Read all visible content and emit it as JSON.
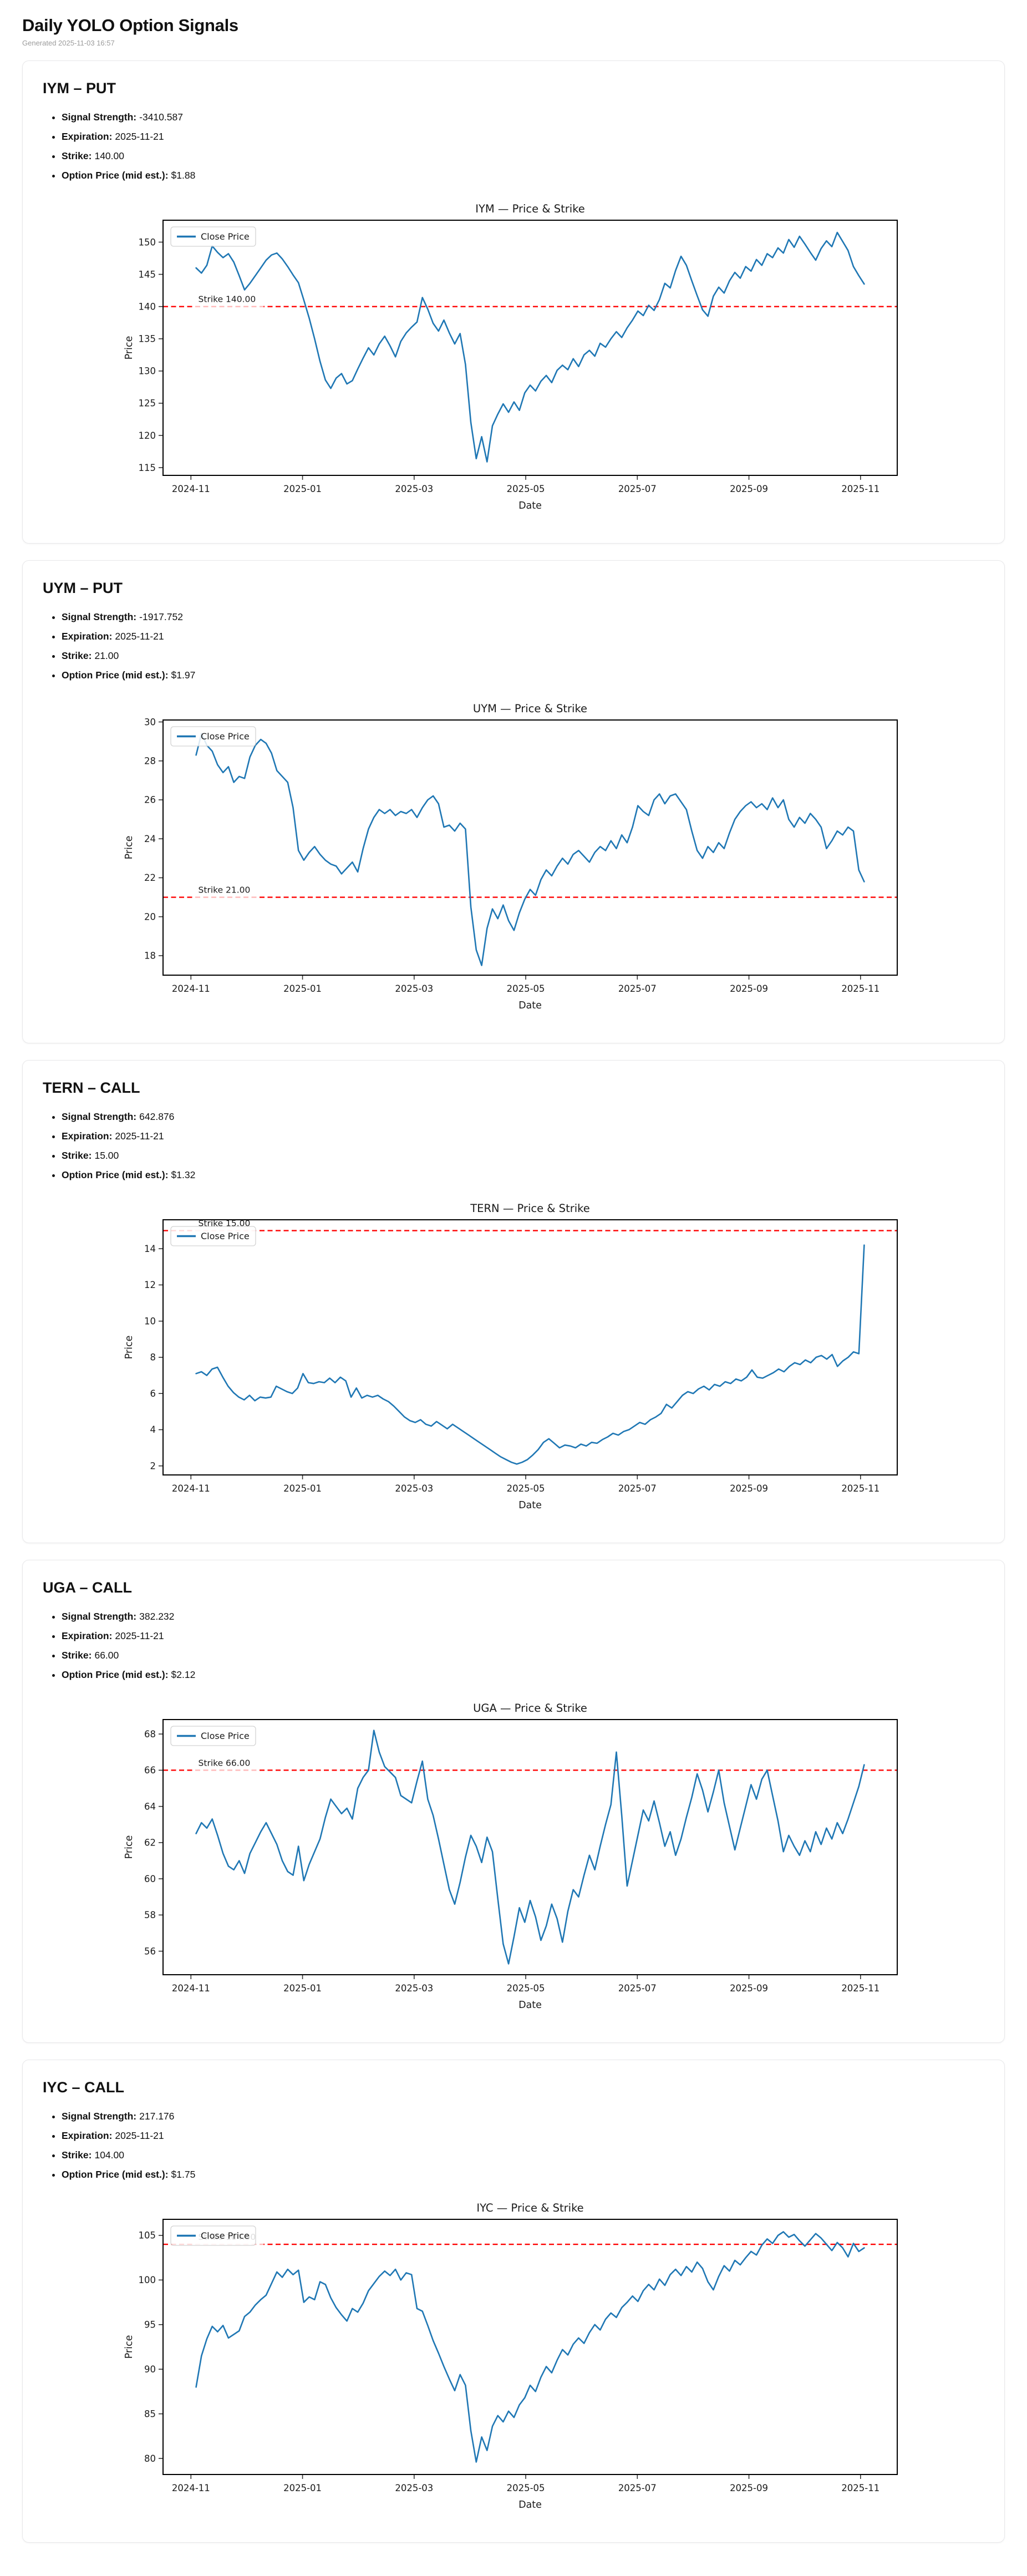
{
  "header": {
    "title": "Daily YOLO Option Signals",
    "generated": "Generated 2025-11-03 16:57"
  },
  "sections": [
    {
      "heading": "IYM – PUT",
      "bullets": [
        {
          "label": "Signal Strength:",
          "value": "-3410.587"
        },
        {
          "label": "Expiration:",
          "value": "2025-11-21"
        },
        {
          "label": "Strike:",
          "value": "140.00"
        },
        {
          "label": "Option Price (mid est.):",
          "value": "$1.88"
        }
      ]
    },
    {
      "heading": "UYM – PUT",
      "bullets": [
        {
          "label": "Signal Strength:",
          "value": "-1917.752"
        },
        {
          "label": "Expiration:",
          "value": "2025-11-21"
        },
        {
          "label": "Strike:",
          "value": "21.00"
        },
        {
          "label": "Option Price (mid est.):",
          "value": "$1.97"
        }
      ]
    },
    {
      "heading": "TERN – CALL",
      "bullets": [
        {
          "label": "Signal Strength:",
          "value": "642.876"
        },
        {
          "label": "Expiration:",
          "value": "2025-11-21"
        },
        {
          "label": "Strike:",
          "value": "15.00"
        },
        {
          "label": "Option Price (mid est.):",
          "value": "$1.32"
        }
      ]
    },
    {
      "heading": "UGA – CALL",
      "bullets": [
        {
          "label": "Signal Strength:",
          "value": "382.232"
        },
        {
          "label": "Expiration:",
          "value": "2025-11-21"
        },
        {
          "label": "Strike:",
          "value": "66.00"
        },
        {
          "label": "Option Price (mid est.):",
          "value": "$2.12"
        }
      ]
    },
    {
      "heading": "IYC – CALL",
      "bullets": [
        {
          "label": "Signal Strength:",
          "value": "217.176"
        },
        {
          "label": "Expiration:",
          "value": "2025-11-21"
        },
        {
          "label": "Strike:",
          "value": "104.00"
        },
        {
          "label": "Option Price (mid est.):",
          "value": "$1.75"
        }
      ]
    }
  ],
  "chart_data": [
    {
      "type": "line",
      "title": "IYM — Price & Strike",
      "xlabel": "Date",
      "ylabel": "Price",
      "legend": [
        "Close Price"
      ],
      "legend_position": "upper-left",
      "line_color": "#1f77b4",
      "strike": 140.0,
      "strike_label": "Strike 140.00",
      "strike_color": "#ff0000",
      "grid": false,
      "x_ticks": [
        "2024-11",
        "2025-01",
        "2025-03",
        "2025-05",
        "2025-07",
        "2025-09",
        "2025-11"
      ],
      "y_ticks": [
        115,
        120,
        125,
        130,
        135,
        140,
        145,
        150
      ],
      "ylim": [
        113.8,
        153.4
      ],
      "values": [
        146.0,
        145.2,
        146.4,
        149.4,
        148.4,
        147.6,
        148.2,
        146.9,
        144.8,
        142.6,
        143.6,
        144.8,
        146.0,
        147.2,
        148.0,
        148.3,
        147.4,
        146.2,
        144.9,
        143.7,
        141.0,
        138.2,
        135.0,
        131.5,
        128.6,
        127.3,
        128.9,
        129.6,
        128.0,
        128.5,
        130.3,
        132.0,
        133.6,
        132.5,
        134.2,
        135.4,
        133.9,
        132.2,
        134.6,
        135.9,
        136.8,
        137.6,
        141.4,
        139.6,
        137.4,
        136.2,
        137.9,
        135.9,
        134.2,
        135.8,
        131.0,
        122.0,
        116.4,
        119.8,
        115.9,
        121.5,
        123.3,
        124.9,
        123.6,
        125.2,
        123.9,
        126.6,
        127.8,
        126.9,
        128.4,
        129.3,
        128.2,
        130.1,
        130.9,
        130.2,
        131.9,
        130.7,
        132.5,
        133.2,
        132.3,
        134.3,
        133.7,
        135.0,
        136.1,
        135.2,
        136.7,
        137.9,
        139.3,
        138.6,
        140.2,
        139.4,
        141.1,
        143.6,
        142.9,
        145.6,
        147.8,
        146.4,
        144.0,
        141.7,
        139.5,
        138.5,
        141.6,
        143.0,
        142.1,
        144.0,
        145.3,
        144.4,
        146.2,
        145.5,
        147.3,
        146.4,
        148.2,
        147.6,
        149.1,
        148.3,
        150.4,
        149.2,
        150.9,
        149.7,
        148.4,
        147.2,
        149.0,
        150.2,
        149.3,
        151.5,
        150.1,
        148.7,
        146.2,
        144.8,
        143.5
      ]
    },
    {
      "type": "line",
      "title": "UYM — Price & Strike",
      "xlabel": "Date",
      "ylabel": "Price",
      "legend": [
        "Close Price"
      ],
      "legend_position": "upper-left",
      "line_color": "#1f77b4",
      "strike": 21.0,
      "strike_label": "Strike 21.00",
      "strike_color": "#ff0000",
      "grid": false,
      "x_ticks": [
        "2024-11",
        "2025-01",
        "2025-03",
        "2025-05",
        "2025-07",
        "2025-09",
        "2025-11"
      ],
      "y_ticks": [
        18,
        20,
        22,
        24,
        26,
        28,
        30
      ],
      "ylim": [
        17.0,
        30.1
      ],
      "values": [
        28.3,
        29.4,
        28.8,
        28.5,
        27.8,
        27.4,
        27.7,
        26.9,
        27.2,
        27.1,
        28.2,
        28.8,
        29.1,
        28.9,
        28.4,
        27.5,
        27.2,
        26.9,
        25.6,
        23.4,
        22.9,
        23.3,
        23.6,
        23.2,
        22.9,
        22.7,
        22.6,
        22.2,
        22.5,
        22.8,
        22.3,
        23.5,
        24.5,
        25.1,
        25.5,
        25.3,
        25.5,
        25.2,
        25.4,
        25.3,
        25.5,
        25.1,
        25.6,
        26.0,
        26.2,
        25.8,
        24.6,
        24.7,
        24.4,
        24.8,
        24.5,
        20.5,
        18.3,
        17.5,
        19.4,
        20.4,
        19.9,
        20.6,
        19.8,
        19.3,
        20.2,
        20.9,
        21.4,
        21.1,
        21.9,
        22.4,
        22.1,
        22.6,
        23.0,
        22.7,
        23.2,
        23.4,
        23.1,
        22.8,
        23.3,
        23.6,
        23.4,
        23.9,
        23.5,
        24.2,
        23.8,
        24.6,
        25.7,
        25.4,
        25.2,
        26.0,
        26.3,
        25.8,
        26.2,
        26.3,
        25.9,
        25.5,
        24.4,
        23.4,
        23.0,
        23.6,
        23.3,
        23.8,
        23.5,
        24.3,
        25.0,
        25.4,
        25.7,
        25.9,
        25.6,
        25.8,
        25.5,
        26.1,
        25.6,
        26.0,
        25.0,
        24.6,
        25.1,
        24.8,
        25.3,
        25.0,
        24.6,
        23.5,
        23.9,
        24.4,
        24.2,
        24.6,
        24.4,
        22.4,
        21.8
      ]
    },
    {
      "type": "line",
      "title": "TERN — Price & Strike",
      "xlabel": "Date",
      "ylabel": "Price",
      "legend": [
        "Close Price"
      ],
      "legend_position": "upper-left",
      "line_color": "#1f77b4",
      "strike": 15.0,
      "strike_label": "Strike 15.00",
      "strike_color": "#ff0000",
      "grid": false,
      "x_ticks": [
        "2024-11",
        "2025-01",
        "2025-03",
        "2025-05",
        "2025-07",
        "2025-09",
        "2025-11"
      ],
      "y_ticks": [
        2,
        4,
        6,
        8,
        10,
        12,
        14
      ],
      "ylim": [
        1.5,
        15.6
      ],
      "values": [
        7.1,
        7.2,
        7.0,
        7.35,
        7.45,
        6.9,
        6.4,
        6.05,
        5.8,
        5.65,
        5.9,
        5.6,
        5.8,
        5.75,
        5.8,
        6.4,
        6.25,
        6.1,
        6.0,
        6.3,
        7.1,
        6.6,
        6.55,
        6.65,
        6.6,
        6.85,
        6.6,
        6.9,
        6.7,
        5.8,
        6.3,
        5.75,
        5.9,
        5.8,
        5.9,
        5.7,
        5.55,
        5.3,
        5.0,
        4.7,
        4.5,
        4.4,
        4.55,
        4.3,
        4.2,
        4.45,
        4.25,
        4.05,
        4.3,
        4.1,
        3.9,
        3.7,
        3.5,
        3.3,
        3.1,
        2.9,
        2.7,
        2.5,
        2.35,
        2.2,
        2.1,
        2.2,
        2.35,
        2.6,
        2.9,
        3.3,
        3.5,
        3.25,
        3.0,
        3.15,
        3.1,
        3.0,
        3.2,
        3.1,
        3.3,
        3.25,
        3.45,
        3.6,
        3.8,
        3.7,
        3.9,
        4.0,
        4.2,
        4.4,
        4.3,
        4.55,
        4.7,
        4.9,
        5.4,
        5.2,
        5.55,
        5.9,
        6.1,
        6.0,
        6.25,
        6.4,
        6.2,
        6.5,
        6.4,
        6.65,
        6.55,
        6.8,
        6.7,
        6.9,
        7.3,
        6.9,
        6.85,
        7.0,
        7.15,
        7.35,
        7.2,
        7.5,
        7.7,
        7.6,
        7.85,
        7.7,
        8.0,
        8.1,
        7.9,
        8.15,
        7.5,
        7.8,
        8.0,
        8.3,
        8.2,
        14.2
      ]
    },
    {
      "type": "line",
      "title": "UGA — Price & Strike",
      "xlabel": "Date",
      "ylabel": "Price",
      "legend": [
        "Close Price"
      ],
      "legend_position": "upper-left",
      "line_color": "#1f77b4",
      "strike": 66.0,
      "strike_label": "Strike 66.00",
      "strike_color": "#ff0000",
      "grid": false,
      "x_ticks": [
        "2024-11",
        "2025-01",
        "2025-03",
        "2025-05",
        "2025-07",
        "2025-09",
        "2025-11"
      ],
      "y_ticks": [
        56,
        58,
        60,
        62,
        64,
        66,
        68
      ],
      "ylim": [
        54.7,
        68.8
      ],
      "values": [
        62.5,
        63.1,
        62.8,
        63.3,
        62.4,
        61.4,
        60.7,
        60.5,
        61.0,
        60.3,
        61.4,
        62.0,
        62.6,
        63.1,
        62.5,
        61.9,
        61.0,
        60.4,
        60.2,
        61.8,
        59.9,
        60.8,
        61.5,
        62.2,
        63.4,
        64.4,
        64.0,
        63.6,
        63.9,
        63.3,
        65.0,
        65.6,
        66.0,
        68.2,
        67.0,
        66.2,
        65.9,
        65.6,
        64.6,
        64.4,
        64.2,
        65.4,
        66.5,
        64.4,
        63.5,
        62.2,
        60.8,
        59.4,
        58.6,
        59.8,
        61.2,
        62.4,
        61.8,
        60.9,
        62.3,
        61.5,
        58.9,
        56.4,
        55.3,
        56.8,
        58.4,
        57.6,
        58.8,
        57.9,
        56.6,
        57.4,
        58.6,
        57.8,
        56.5,
        58.2,
        59.4,
        59.0,
        60.2,
        61.3,
        60.5,
        61.8,
        63.0,
        64.1,
        67.0,
        63.5,
        59.6,
        61.0,
        62.4,
        63.8,
        63.2,
        64.3,
        63.1,
        61.8,
        62.6,
        61.3,
        62.2,
        63.4,
        64.5,
        65.8,
        64.9,
        63.7,
        64.8,
        66.0,
        64.2,
        62.9,
        61.6,
        62.8,
        64.0,
        65.2,
        64.4,
        65.5,
        66.0,
        64.6,
        63.2,
        61.5,
        62.4,
        61.8,
        61.3,
        62.1,
        61.5,
        62.6,
        61.9,
        62.8,
        62.2,
        63.1,
        62.5,
        63.3,
        64.2,
        65.1,
        66.3
      ]
    },
    {
      "type": "line",
      "title": "IYC — Price & Strike",
      "xlabel": "Date",
      "ylabel": "Price",
      "legend": [
        "Close Price"
      ],
      "legend_position": "upper-left",
      "line_color": "#1f77b4",
      "strike": 104.0,
      "strike_label": "Strike 104.00",
      "strike_color": "#ff0000",
      "grid": false,
      "x_ticks": [
        "2024-11",
        "2025-01",
        "2025-03",
        "2025-05",
        "2025-07",
        "2025-09",
        "2025-11"
      ],
      "y_ticks": [
        80,
        85,
        90,
        95,
        100,
        105
      ],
      "ylim": [
        78.2,
        106.8
      ],
      "values": [
        88.0,
        91.5,
        93.4,
        94.8,
        94.2,
        94.9,
        93.5,
        93.9,
        94.3,
        95.9,
        96.4,
        97.2,
        97.8,
        98.3,
        99.6,
        100.9,
        100.3,
        101.2,
        100.6,
        101.1,
        97.5,
        98.1,
        97.8,
        99.8,
        99.5,
        98.0,
        96.9,
        96.1,
        95.4,
        96.8,
        96.4,
        97.4,
        98.8,
        99.6,
        100.4,
        101.0,
        100.5,
        101.2,
        100.0,
        100.8,
        100.6,
        96.8,
        96.5,
        94.9,
        93.2,
        91.8,
        90.3,
        88.9,
        87.6,
        89.4,
        88.2,
        83.1,
        79.6,
        82.4,
        80.9,
        83.6,
        84.8,
        84.1,
        85.3,
        84.6,
        86.0,
        86.8,
        88.2,
        87.5,
        89.1,
        90.3,
        89.6,
        91.0,
        92.2,
        91.6,
        92.8,
        93.5,
        92.9,
        94.1,
        95.0,
        94.4,
        95.6,
        96.3,
        95.8,
        96.9,
        97.5,
        98.2,
        97.6,
        98.8,
        99.5,
        98.9,
        100.1,
        99.4,
        100.6,
        101.2,
        100.5,
        101.5,
        100.9,
        102.0,
        101.3,
        99.8,
        98.9,
        100.4,
        101.6,
        101.0,
        102.2,
        101.7,
        102.5,
        103.2,
        102.8,
        103.9,
        104.6,
        104.1,
        105.0,
        105.4,
        104.8,
        105.1,
        104.4,
        103.8,
        104.5,
        105.2,
        104.7,
        104.0,
        103.3,
        104.2,
        103.6,
        102.6,
        104.1,
        103.2,
        103.6
      ]
    }
  ]
}
